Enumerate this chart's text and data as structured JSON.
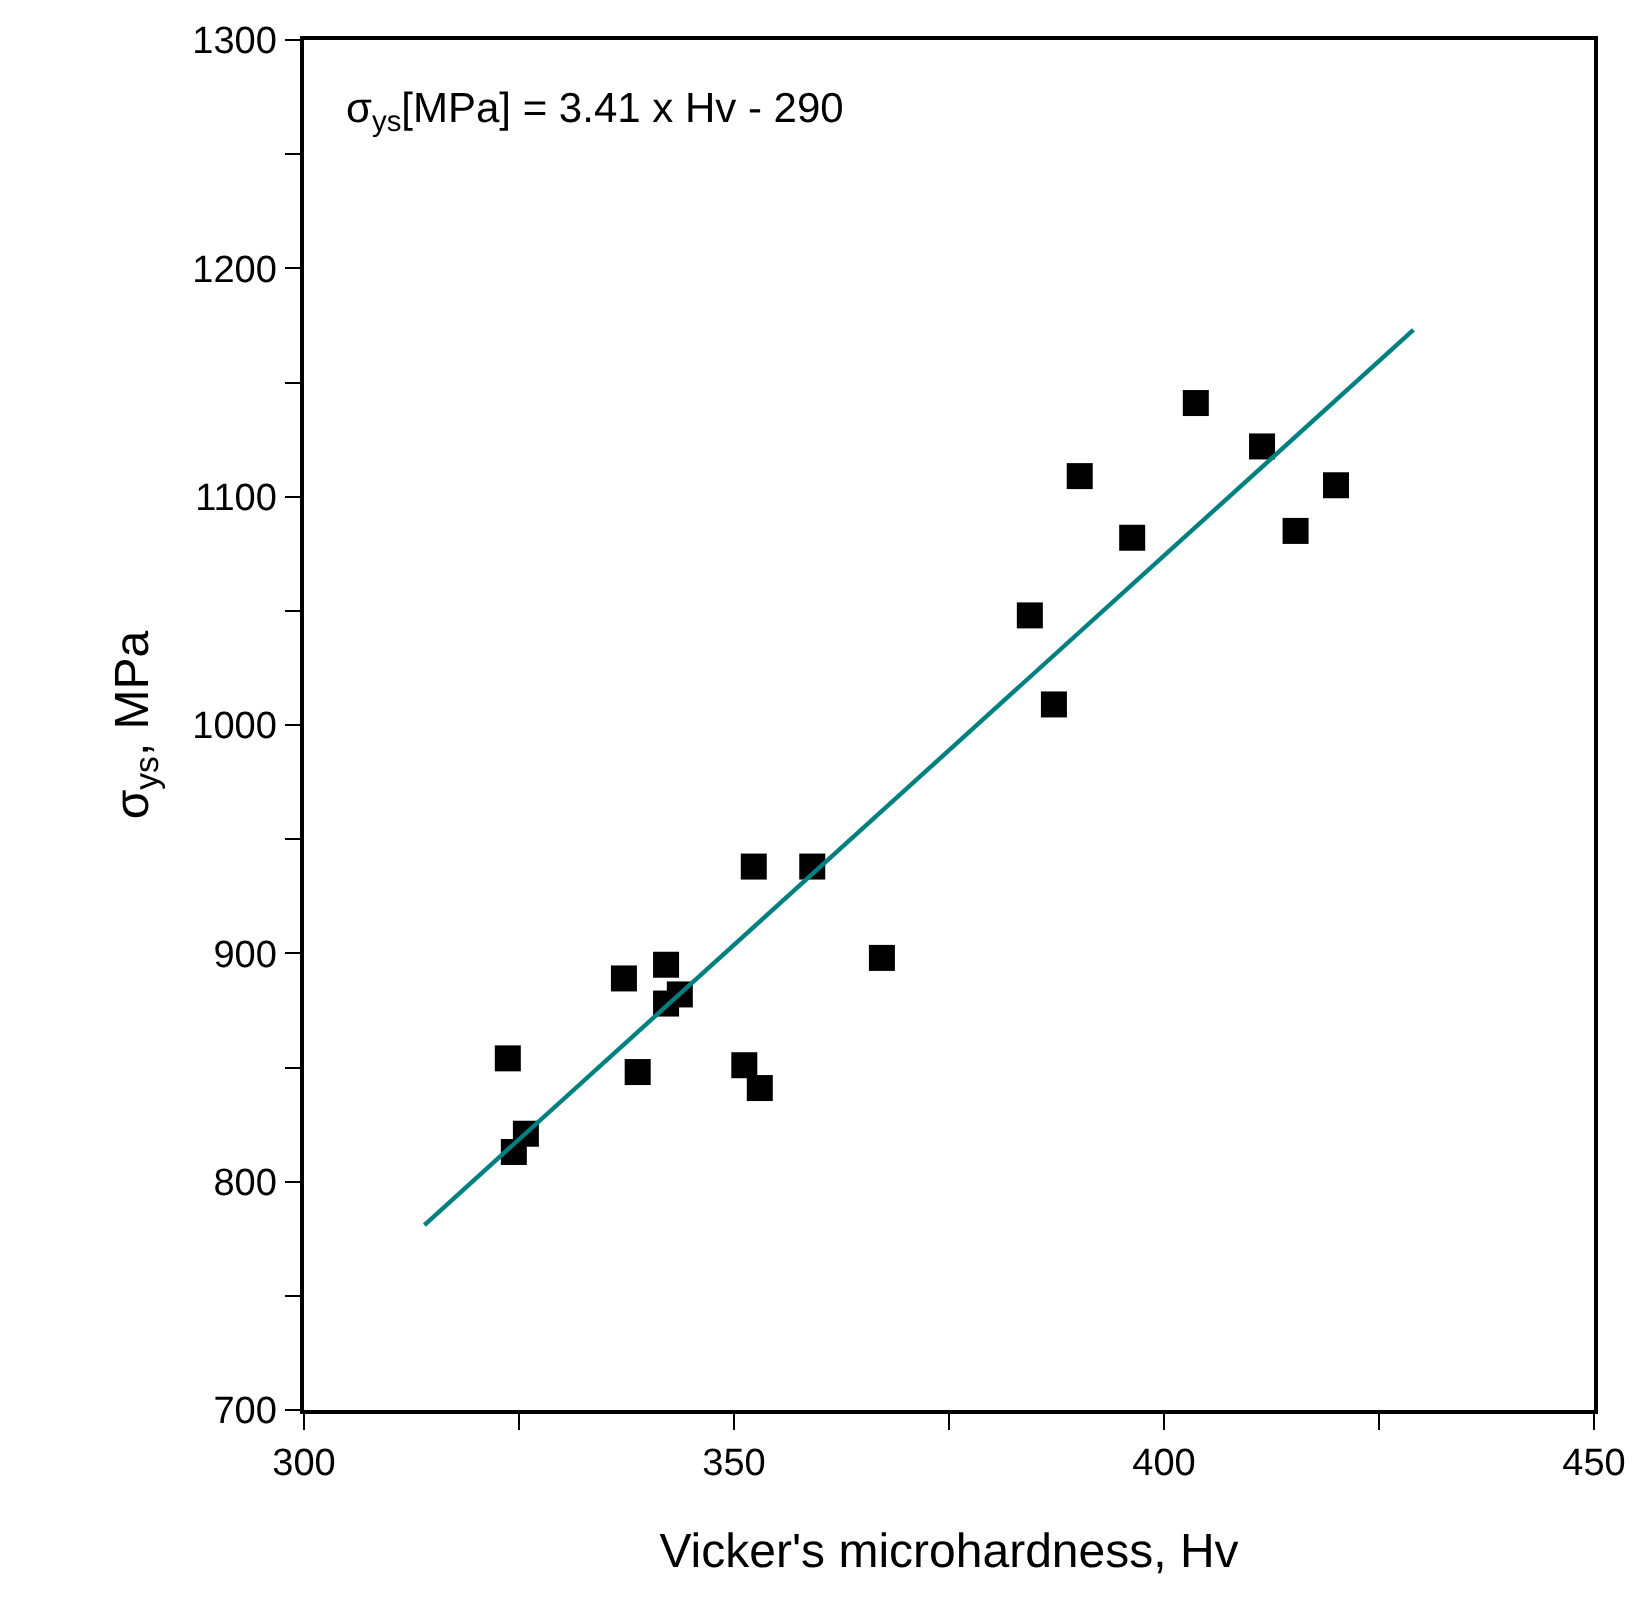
{
  "chart_data": {
    "type": "scatter",
    "xlabel": "Vicker's microhardness, Hv",
    "ylabel": "σ$_{ys}$, MPa",
    "annotations": [
      "σ$_{ys}$[MPa] = 3.41 x Hv - 290"
    ],
    "series": [
      {
        "marker": "square",
        "color": "#000000",
        "x": [
          323.7,
          324.4,
          325.8,
          337.2,
          338.8,
          342.1,
          342.1,
          343.7,
          351.2,
          352.3,
          353.0,
          359.1,
          367.2,
          384.4,
          387.2,
          390.2,
          396.3,
          403.7,
          411.4,
          415.3,
          420.0
        ],
        "values": [
          854,
          813,
          821,
          889,
          848,
          895,
          878,
          882,
          851,
          938,
          841,
          938,
          898,
          1048,
          1009,
          1109,
          1082,
          1141,
          1122,
          1085,
          1105
        ]
      },
      {
        "type": "line",
        "marker": "none",
        "line_style": "solid",
        "color": "#008080",
        "x": [
          314,
          429
        ],
        "values": [
          781,
          1173
        ]
      }
    ],
    "xlim": [
      300,
      450
    ],
    "xticks": [
      300,
      {
        "value": 325,
        "label": null
      },
      350,
      {
        "value": 375,
        "label": null
      },
      400,
      {
        "value": 425,
        "label": null
      },
      450
    ],
    "ylim": [
      700,
      1300
    ],
    "yticks": [
      700,
      {
        "value": 750,
        "label": null
      },
      800,
      {
        "value": 850,
        "label": null
      },
      900,
      {
        "value": 950,
        "label": null
      },
      1000,
      {
        "value": 1050,
        "label": null
      },
      1100,
      {
        "value": 1150,
        "label": null
      },
      1200,
      {
        "value": 1250,
        "label": null
      },
      1300
    ]
  }
}
